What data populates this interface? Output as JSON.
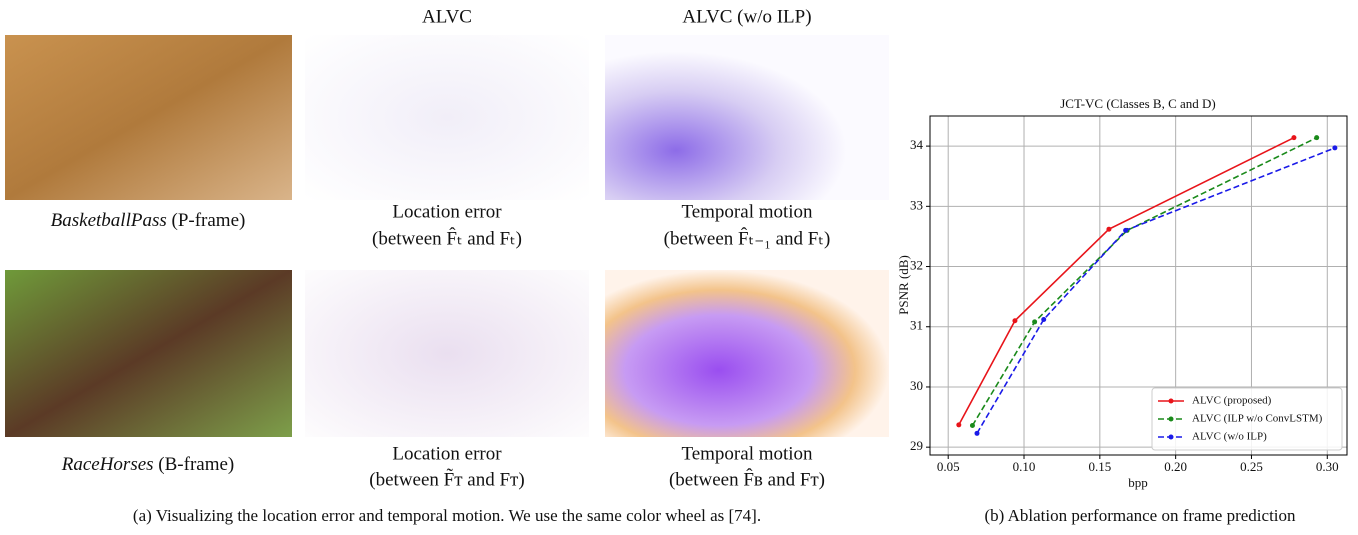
{
  "figure": {
    "columns": [
      "ALVC",
      "ALVC (w/o ILP)"
    ],
    "rows": [
      {
        "name": "BasketballPass",
        "frame": "(P-frame)",
        "captions": [
          {
            "title": "Location error",
            "detail": "(between F̂ₜ and Fₜ)"
          },
          {
            "title": "Temporal motion",
            "detail": "(between F̂ₜ₋₁ and Fₜ)"
          }
        ]
      },
      {
        "name": "RaceHorses",
        "frame": "(B-frame)",
        "captions": [
          {
            "title": "Location error",
            "detail": "(between F̃ᴛ and Fᴛ)"
          },
          {
            "title": "Temporal motion",
            "detail": "(between F̂ʙ and Fᴛ)"
          }
        ]
      }
    ],
    "caption_a": "(a) Visualizing the location error and temporal motion. We use the same color wheel as [74].",
    "caption_b": "(b) Ablation performance on frame prediction"
  },
  "chart_data": {
    "type": "line",
    "title": "JCT-VC (Classes B, C and D)",
    "xlabel": "bpp",
    "ylabel": "PSNR (dB)",
    "xlim": [
      0.038,
      0.313
    ],
    "ylim": [
      28.87,
      34.5
    ],
    "xticks": [
      {
        "value": 0.05,
        "label": "0.05"
      },
      {
        "value": 0.1,
        "label": "0.10"
      },
      {
        "value": 0.15,
        "label": "0.15"
      },
      {
        "value": 0.2,
        "label": "0.20"
      },
      {
        "value": 0.25,
        "label": "0.25"
      },
      {
        "value": 0.3,
        "label": "0.30"
      }
    ],
    "yticks": [
      29,
      30,
      31,
      32,
      33,
      34
    ],
    "grid": true,
    "legend": "lower right",
    "series": [
      {
        "name": "ALVC (proposed)",
        "color": "#e8141a",
        "linestyle": "solid",
        "x": [
          0.057,
          0.094,
          0.156,
          0.278
        ],
        "values": [
          29.37,
          31.1,
          32.62,
          34.14
        ]
      },
      {
        "name": "ALVC (ILP w/o ConvLSTM)",
        "color": "#1a8a1a",
        "linestyle": "dashed",
        "x": [
          0.066,
          0.107,
          0.168,
          0.293
        ],
        "values": [
          29.36,
          31.08,
          32.6,
          34.14
        ]
      },
      {
        "name": "ALVC (w/o ILP)",
        "color": "#1a1ae8",
        "linestyle": "dashed",
        "x": [
          0.069,
          0.113,
          0.167,
          0.305
        ],
        "values": [
          29.23,
          31.12,
          32.6,
          33.97
        ]
      }
    ]
  }
}
